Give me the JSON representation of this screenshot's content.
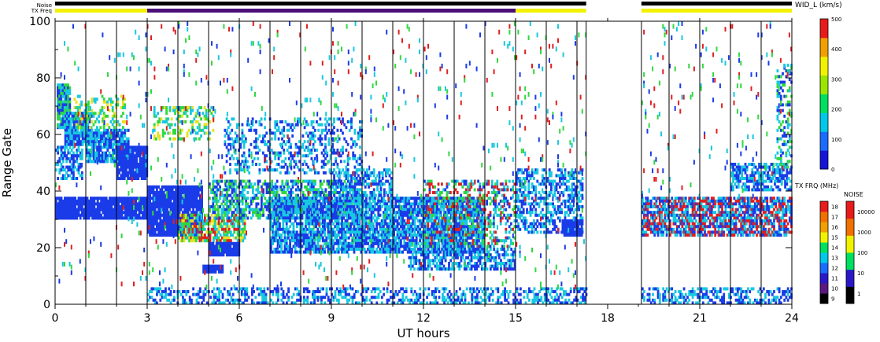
{
  "chart_data": {
    "type": "heatmap",
    "xlabel": "UT hours",
    "ylabel": "Range Gate",
    "x_ticks": [
      "0",
      "3",
      "6",
      "9",
      "12",
      "15",
      "18",
      "21",
      "24"
    ],
    "y_ticks": [
      "0",
      "20",
      "40",
      "60",
      "80",
      "100"
    ],
    "xlim": [
      0,
      24
    ],
    "ylim": [
      0,
      100
    ],
    "grid_vertical_every_hours": 1,
    "data_gap_hours": [
      17.3,
      19.1
    ],
    "top_bars": {
      "noise_label": "Noise",
      "txfreq_label": "TX Freq",
      "noise_segments": [
        [
          0,
          17.3
        ],
        [
          19.1,
          24
        ]
      ],
      "txfreq_segments": [
        {
          "from": 0,
          "to": 3,
          "color": "#f2f200"
        },
        {
          "from": 3,
          "to": 15,
          "color": "#4b0f7a"
        },
        {
          "from": 15,
          "to": 17.3,
          "color": "#f2f200"
        },
        {
          "from": 19.1,
          "to": 24,
          "color": "#f2f200"
        }
      ]
    },
    "colorbar_main": {
      "title": "WID_L (km/s)",
      "ticks": [
        "0",
        "100",
        "200",
        "300",
        "400",
        "500"
      ],
      "range": [
        0,
        500
      ],
      "colors": [
        "#1515d8",
        "#1a6cff",
        "#00c8e8",
        "#00e060",
        "#9be600",
        "#f2f200",
        "#f0a000",
        "#e81a1a"
      ]
    },
    "colorbar_txfreq": {
      "title": "TX FRQ (MHz)",
      "ticks": [
        "9",
        "10",
        "11",
        "12",
        "13",
        "14",
        "15",
        "16",
        "17",
        "18"
      ],
      "colors": [
        "#000000",
        "#5a1880",
        "#2a18c8",
        "#1a6cff",
        "#00c8e8",
        "#00e060",
        "#f2f200",
        "#f0a000",
        "#f07000",
        "#e81a1a"
      ]
    },
    "colorbar_noise": {
      "title": "NOISE",
      "ticks": [
        "1",
        "10",
        "100",
        "1000",
        "10000"
      ],
      "colors": [
        "#000000",
        "#2a18c8",
        "#00e060",
        "#f2f200",
        "#f07000",
        "#e81a1a"
      ]
    },
    "scatter_regions": [
      {
        "t0": 0.05,
        "t1": 0.5,
        "g0": 62,
        "g1": 78,
        "colors": [
          "cyan",
          "green",
          "blue"
        ],
        "density": 0.9
      },
      {
        "t0": 0.3,
        "t1": 1.2,
        "g0": 56,
        "g1": 68,
        "colors": [
          "blue",
          "cyan"
        ],
        "density": 0.9
      },
      {
        "t0": 1.0,
        "t1": 2.4,
        "g0": 50,
        "g1": 62,
        "colors": [
          "blue",
          "cyan"
        ],
        "density": 0.85
      },
      {
        "t0": 2.0,
        "t1": 3.0,
        "g0": 44,
        "g1": 56,
        "colors": [
          "blue"
        ],
        "density": 0.9
      },
      {
        "t0": 0.0,
        "t1": 0.9,
        "g0": 44,
        "g1": 56,
        "colors": [
          "blue",
          "cyan"
        ],
        "density": 0.6
      },
      {
        "t0": 0.6,
        "t1": 2.3,
        "g0": 62,
        "g1": 74,
        "colors": [
          "green",
          "cyan",
          "yellow"
        ],
        "density": 0.35
      },
      {
        "t0": 0.0,
        "t1": 3.1,
        "g0": 30,
        "g1": 38,
        "colors": [
          "blue"
        ],
        "density": 0.95
      },
      {
        "t0": 3.0,
        "t1": 4.8,
        "g0": 24,
        "g1": 42,
        "colors": [
          "blue"
        ],
        "density": 0.95
      },
      {
        "t0": 4.0,
        "t1": 6.2,
        "g0": 22,
        "g1": 32,
        "colors": [
          "green",
          "yellow",
          "cyan",
          "red"
        ],
        "density": 0.7
      },
      {
        "t0": 5.0,
        "t1": 6.0,
        "g0": 17,
        "g1": 22,
        "colors": [
          "blue"
        ],
        "density": 0.95
      },
      {
        "t0": 4.8,
        "t1": 5.5,
        "g0": 11,
        "g1": 14,
        "colors": [
          "blue"
        ],
        "density": 0.95
      },
      {
        "t0": 5.0,
        "t1": 10.0,
        "g0": 30,
        "g1": 44,
        "colors": [
          "blue",
          "cyan",
          "green"
        ],
        "density": 0.55
      },
      {
        "t0": 7.0,
        "t1": 14.0,
        "g0": 18,
        "g1": 38,
        "colors": [
          "blue",
          "cyan"
        ],
        "density": 0.8
      },
      {
        "t0": 9.0,
        "t1": 11.0,
        "g0": 38,
        "g1": 48,
        "colors": [
          "blue",
          "cyan"
        ],
        "density": 0.5
      },
      {
        "t0": 3.2,
        "t1": 5.2,
        "g0": 58,
        "g1": 70,
        "colors": [
          "green",
          "yellow",
          "cyan"
        ],
        "density": 0.4
      },
      {
        "t0": 5.5,
        "t1": 10.0,
        "g0": 46,
        "g1": 66,
        "colors": [
          "blue",
          "cyan"
        ],
        "density": 0.3
      },
      {
        "t0": 11.5,
        "t1": 15.0,
        "g0": 12,
        "g1": 20,
        "colors": [
          "blue",
          "cyan"
        ],
        "density": 0.6
      },
      {
        "t0": 12.0,
        "t1": 15.0,
        "g0": 20,
        "g1": 44,
        "colors": [
          "blue",
          "cyan",
          "red",
          "green"
        ],
        "density": 0.35
      },
      {
        "t0": 15.0,
        "t1": 17.2,
        "g0": 25,
        "g1": 48,
        "colors": [
          "blue",
          "cyan"
        ],
        "density": 0.5
      },
      {
        "t0": 16.5,
        "t1": 17.2,
        "g0": 24,
        "g1": 30,
        "colors": [
          "blue"
        ],
        "density": 0.9
      },
      {
        "t0": 19.1,
        "t1": 24.0,
        "g0": 24,
        "g1": 38,
        "colors": [
          "blue",
          "red",
          "cyan"
        ],
        "density": 0.75
      },
      {
        "t0": 22.0,
        "t1": 24.0,
        "g0": 40,
        "g1": 50,
        "colors": [
          "blue",
          "cyan"
        ],
        "density": 0.6
      },
      {
        "t0": 23.5,
        "t1": 24.0,
        "g0": 48,
        "g1": 85,
        "colors": [
          "blue",
          "cyan",
          "green"
        ],
        "density": 0.35
      },
      {
        "t0": 3.0,
        "t1": 17.3,
        "g0": 0,
        "g1": 6,
        "colors": [
          "blue",
          "cyan"
        ],
        "density": 0.45
      },
      {
        "t0": 19.1,
        "t1": 24.0,
        "g0": 0,
        "g1": 6,
        "colors": [
          "blue",
          "cyan"
        ],
        "density": 0.45
      },
      {
        "t0": 0.0,
        "t1": 17.3,
        "g0": 6,
        "g1": 100,
        "colors": [
          "blue",
          "red",
          "cyan",
          "green"
        ],
        "density": 0.025
      },
      {
        "t0": 19.1,
        "t1": 24.0,
        "g0": 38,
        "g1": 100,
        "colors": [
          "blue",
          "red",
          "cyan",
          "green"
        ],
        "density": 0.03
      }
    ]
  }
}
